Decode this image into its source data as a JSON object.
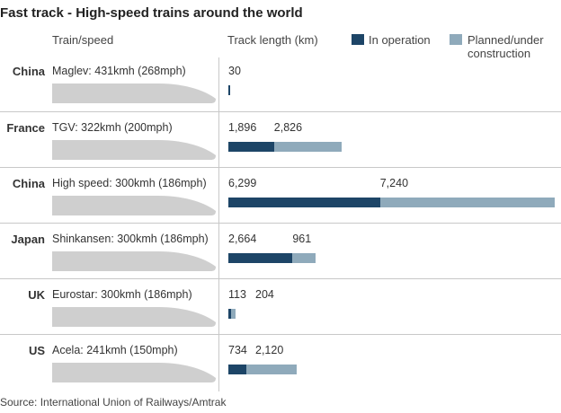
{
  "title": "Fast track - High-speed trains around the world",
  "headers": {
    "train_speed": "Train/speed",
    "track_length": "Track length (km)"
  },
  "legend": {
    "operation": "In operation",
    "planned_line1": "Planned/under",
    "planned_line2": "construction"
  },
  "colors": {
    "operation": "#1d4567",
    "planned": "#8faabb",
    "train": "#cfcfcf"
  },
  "source": "Source: International Union of Railways/Amtrak",
  "chart_data": {
    "type": "bar",
    "stacked": true,
    "orientation": "horizontal",
    "title": "Fast track - High-speed trains around the world",
    "xlabel": "Track length (km)",
    "categories": [
      "China",
      "France",
      "China",
      "Japan",
      "UK",
      "US"
    ],
    "train_labels": [
      "Maglev: 431kmh (268mph)",
      "TGV: 322kmh (200mph)",
      "High speed: 300kmh (186mph)",
      "Shinkansen: 300kmh (186mph)",
      "Eurostar: 300kmh (186mph)",
      "Acela: 241kmh (150mph)"
    ],
    "series": [
      {
        "name": "In operation",
        "values": [
          30,
          1896,
          6299,
          2664,
          113,
          734
        ],
        "labels": [
          "30",
          "1,896",
          "6,299",
          "2,664",
          "113",
          "734"
        ]
      },
      {
        "name": "Planned/under construction",
        "values": [
          0,
          2826,
          7240,
          961,
          204,
          2120
        ],
        "labels": [
          "",
          "2,826",
          "7,240",
          "961",
          "204",
          "2,120"
        ]
      }
    ],
    "xlim": [
      0,
      13700
    ]
  }
}
